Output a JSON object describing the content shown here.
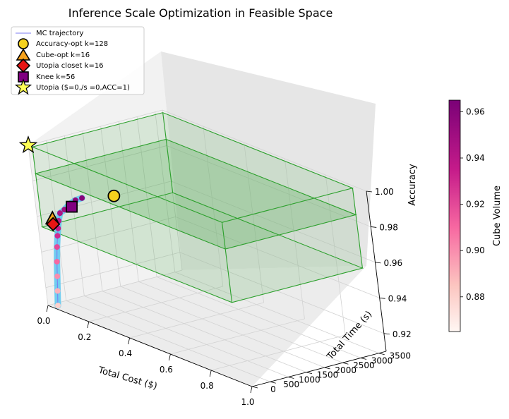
{
  "chart_data": {
    "type": "scatter3d",
    "title": "Inference Scale Optimization in Feasible Space",
    "xlabel": "Total Cost ($)",
    "ylabel": "Total Time (s)",
    "zlabel": "Accuracy",
    "xlim": [
      0,
      1.0
    ],
    "ylim": [
      0,
      3700
    ],
    "zlim": [
      0.91,
      1.0
    ],
    "x_ticks": [
      "0.0",
      "0.2",
      "0.4",
      "0.6",
      "0.8",
      "1.0"
    ],
    "y_ticks": [
      "0",
      "500",
      "1000",
      "1500",
      "2000",
      "2500",
      "3000",
      "3500"
    ],
    "z_ticks": [
      "0.92",
      "0.94",
      "0.96",
      "0.98",
      "1.00"
    ],
    "grid": true,
    "legend_position": "top-left",
    "legend": [
      {
        "label": "MC trajectory",
        "marker": "line",
        "color": "#7b7bf0"
      },
      {
        "label": "Accuracy-opt k=128",
        "marker": "circle",
        "color": "#f5d21e"
      },
      {
        "label": "Cube-opt k=16",
        "marker": "triangle",
        "color": "#f7a21b"
      },
      {
        "label": "Utopia closet k=16",
        "marker": "diamond",
        "color": "#e61414"
      },
      {
        "label": "Knee k=56",
        "marker": "square",
        "color": "#800080"
      },
      {
        "label": "Utopia ($=0,/s =0,ACC=1)",
        "marker": "star",
        "color": "#ffff55"
      }
    ],
    "feasible_box": {
      "x": [
        0.02,
        0.95
      ],
      "y": [
        0,
        3600
      ],
      "z": [
        0.955,
        1.0
      ],
      "inner_top_z": 0.985,
      "color": "#2ca02c"
    },
    "trajectory": [
      {
        "x": 0.02,
        "y": 160,
        "z": 0.91,
        "volume": 0.88
      },
      {
        "x": 0.02,
        "y": 200,
        "z": 0.918,
        "volume": 0.89
      },
      {
        "x": 0.02,
        "y": 240,
        "z": 0.926,
        "volume": 0.9
      },
      {
        "x": 0.02,
        "y": 280,
        "z": 0.934,
        "volume": 0.91
      },
      {
        "x": 0.02,
        "y": 330,
        "z": 0.942,
        "volume": 0.92
      },
      {
        "x": 0.02,
        "y": 380,
        "z": 0.948,
        "volume": 0.93
      },
      {
        "x": 0.02,
        "y": 420,
        "z": 0.952,
        "volume": 0.935
      },
      {
        "x": 0.02,
        "y": 460,
        "z": 0.956,
        "volume": 0.94
      },
      {
        "x": 0.02,
        "y": 520,
        "z": 0.96,
        "volume": 0.945
      },
      {
        "x": 0.03,
        "y": 600,
        "z": 0.962,
        "volume": 0.95
      },
      {
        "x": 0.04,
        "y": 700,
        "z": 0.965,
        "volume": 0.955
      },
      {
        "x": 0.05,
        "y": 820,
        "z": 0.967,
        "volume": 0.958
      },
      {
        "x": 0.06,
        "y": 950,
        "z": 0.968,
        "volume": 0.96
      }
    ],
    "special_points": [
      {
        "label": "Accuracy-opt k=128",
        "x": 0.12,
        "y": 1500,
        "z": 0.969
      },
      {
        "label": "Cube-opt k=16",
        "x": 0.02,
        "y": 300,
        "z": 0.958
      },
      {
        "label": "Utopia closet k=16",
        "x": 0.02,
        "y": 300,
        "z": 0.955
      },
      {
        "label": "Knee k=56",
        "x": 0.05,
        "y": 700,
        "z": 0.964
      },
      {
        "label": "Utopia ($=0,/s =0,ACC=1)",
        "x": 0,
        "y": 0,
        "z": 1.0
      }
    ],
    "colorbar": {
      "label": "Cube Volume",
      "range": [
        0.865,
        0.965
      ],
      "ticks": [
        "0.88",
        "0.90",
        "0.92",
        "0.94",
        "0.96"
      ],
      "colormap": "RdPu"
    }
  }
}
